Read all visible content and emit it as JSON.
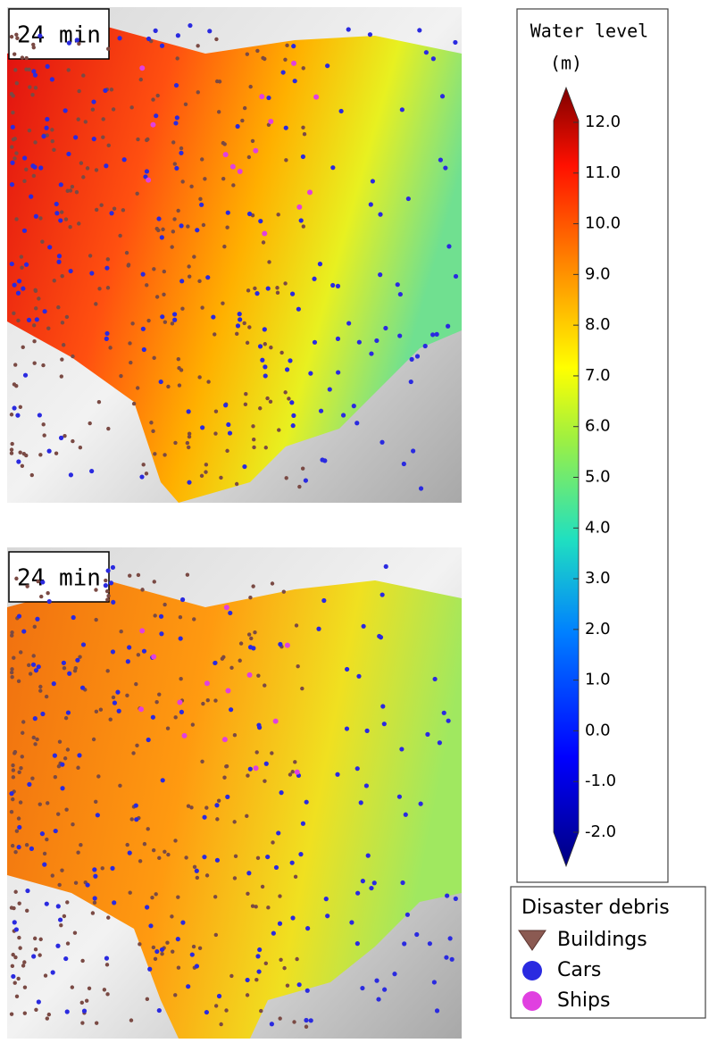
{
  "panels": [
    {
      "label": "24 min"
    },
    {
      "label": "24 min"
    }
  ],
  "colorbar": {
    "title": "Water level",
    "unit": "(m)",
    "ticks": [
      {
        "value": 12,
        "label": "12.0"
      },
      {
        "value": 11,
        "label": "11.0"
      },
      {
        "value": 10,
        "label": "10.0"
      },
      {
        "value": 9,
        "label": "9.0"
      },
      {
        "value": 8,
        "label": "8.0"
      },
      {
        "value": 7,
        "label": "7.0"
      },
      {
        "value": 6,
        "label": "6.0"
      },
      {
        "value": 5,
        "label": "5.0"
      },
      {
        "value": 4,
        "label": "4.0"
      },
      {
        "value": 3,
        "label": "3.0"
      },
      {
        "value": 2,
        "label": "2.0"
      },
      {
        "value": 1,
        "label": "1.0"
      },
      {
        "value": 0,
        "label": "0.0"
      },
      {
        "value": -1,
        "label": "-1.0"
      },
      {
        "value": -2,
        "label": "-2.0"
      }
    ]
  },
  "legend": {
    "title": "Disaster debris",
    "items": [
      "Buildings",
      "Cars",
      "Ships"
    ]
  }
}
